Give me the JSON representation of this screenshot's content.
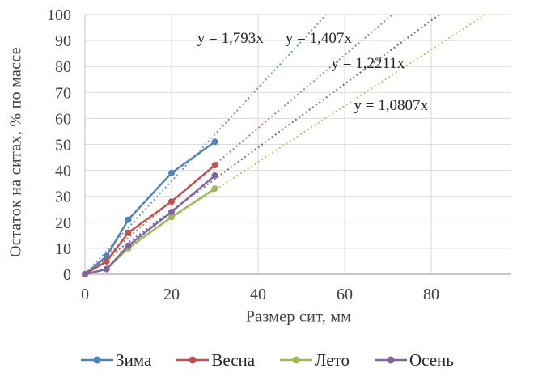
{
  "chart_data": {
    "type": "line",
    "x": [
      0,
      5,
      10,
      20,
      30
    ],
    "series": [
      {
        "name": "Зима",
        "color": "#4F81BD",
        "values": [
          0,
          7,
          21,
          39,
          51
        ],
        "trend": {
          "slope": 1.793,
          "label": "y = 1,793x",
          "color": "#7396c8",
          "label_at": [
            33.6,
            89.1
          ]
        }
      },
      {
        "name": "Весна",
        "color": "#C0504D",
        "values": [
          0,
          5,
          16,
          28,
          42
        ],
        "trend": {
          "slope": 1.407,
          "label": "y = 1,407x",
          "color": "#c87a77",
          "label_at": [
            54.0,
            89.1
          ]
        }
      },
      {
        "name": "Лето",
        "color": "#9BBB59",
        "values": [
          0,
          2,
          10,
          22,
          33
        ],
        "trend": {
          "slope": 1.0807,
          "label": "y = 1,0807x",
          "color": "#c2c271",
          "label_at": [
            70.7,
            63.2
          ]
        }
      },
      {
        "name": "Осень",
        "color": "#8064A2",
        "values": [
          0,
          2,
          11,
          24,
          38
        ],
        "trend": {
          "slope": 1.2211,
          "label": "y = 1,2211x",
          "color": "#6f6aa7",
          "label_at": [
            65.4,
            79.4
          ]
        }
      }
    ],
    "xlabel": "Размер сит, мм",
    "ylabel": "Остаток на ситах, % по массе",
    "x_ticks": [
      0,
      20,
      40,
      60,
      80
    ],
    "y_ticks": [
      0,
      10,
      20,
      30,
      40,
      50,
      60,
      70,
      80,
      90,
      100
    ],
    "xlim": [
      0,
      98.5
    ],
    "ylim": [
      0,
      100
    ],
    "grid": true,
    "legend_position": "bottom",
    "legend_order": [
      "Зима",
      "Весна",
      "Лето",
      "Осень"
    ]
  },
  "colors": {
    "gridline": "#d9d9d9",
    "axis_line": "#bfbfbf",
    "tick_text": "#404040",
    "equation_text": "#262626"
  }
}
